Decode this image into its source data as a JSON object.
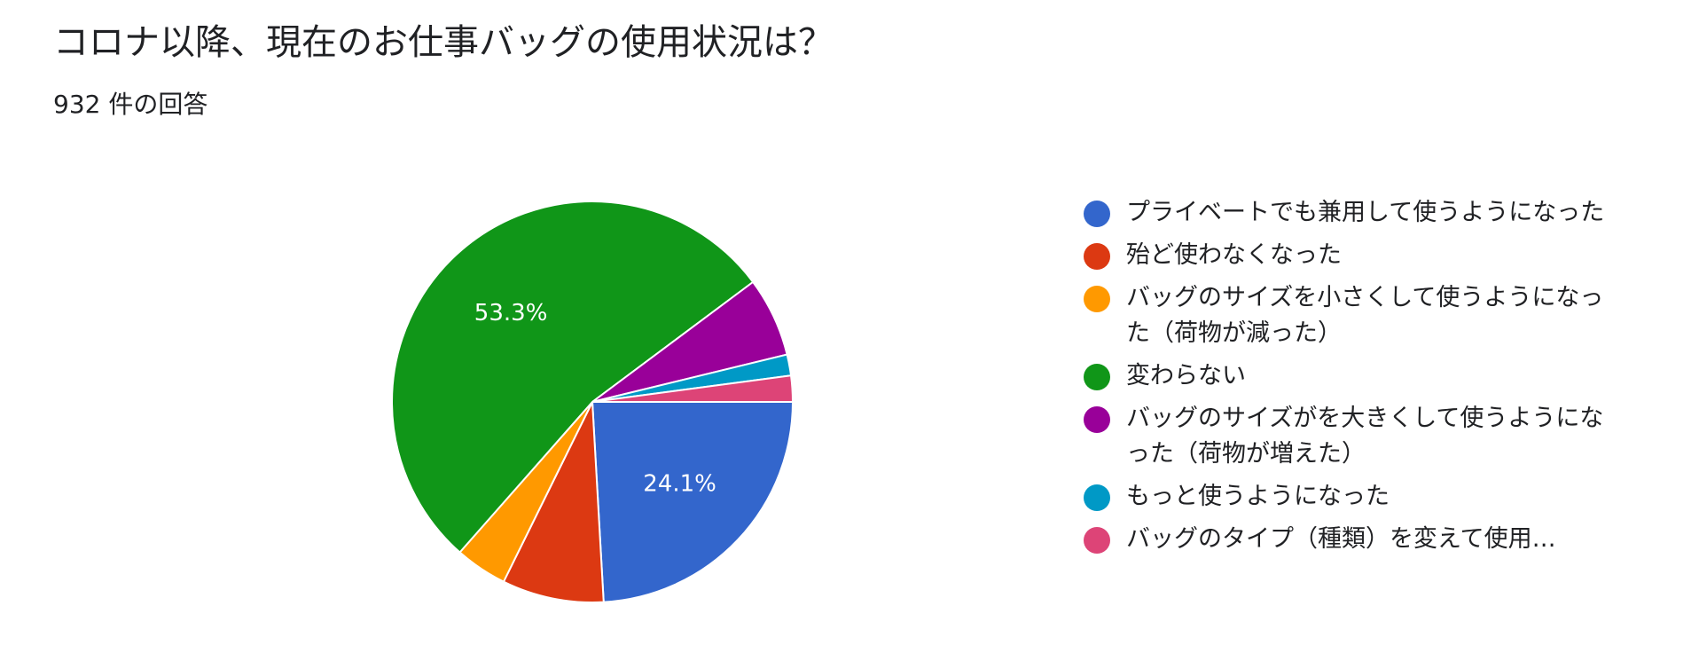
{
  "title": "コロナ以降、現在のお仕事バッグの使用状況は？",
  "subtitle": "932 件の回答",
  "chart_data": {
    "type": "pie",
    "legend_position": "right",
    "slices": [
      {
        "label": "プライベートでも兼用して使うようになった",
        "value": 24.1,
        "color": "#3366cc",
        "data_label": "24.1%"
      },
      {
        "label": "殆ど使わなくなった",
        "value": 8.2,
        "color": "#dc3912",
        "data_label": ""
      },
      {
        "label": "バッグのサイズを小さくして使うようになった（荷物が減った）",
        "value": 4.2,
        "color": "#ff9900",
        "data_label": ""
      },
      {
        "label": "変わらない",
        "value": 53.3,
        "color": "#109618",
        "data_label": "53.3%"
      },
      {
        "label": "バッグのサイズがを大きくして使うようになった（荷物が増えた）",
        "value": 6.4,
        "color": "#990099",
        "data_label": ""
      },
      {
        "label": "もっと使うようになった",
        "value": 1.7,
        "color": "#0099c6",
        "data_label": ""
      },
      {
        "label": "バッグのタイプ（種類）を変えて使用…",
        "value": 2.1,
        "color": "#dd4477",
        "data_label": ""
      }
    ]
  }
}
